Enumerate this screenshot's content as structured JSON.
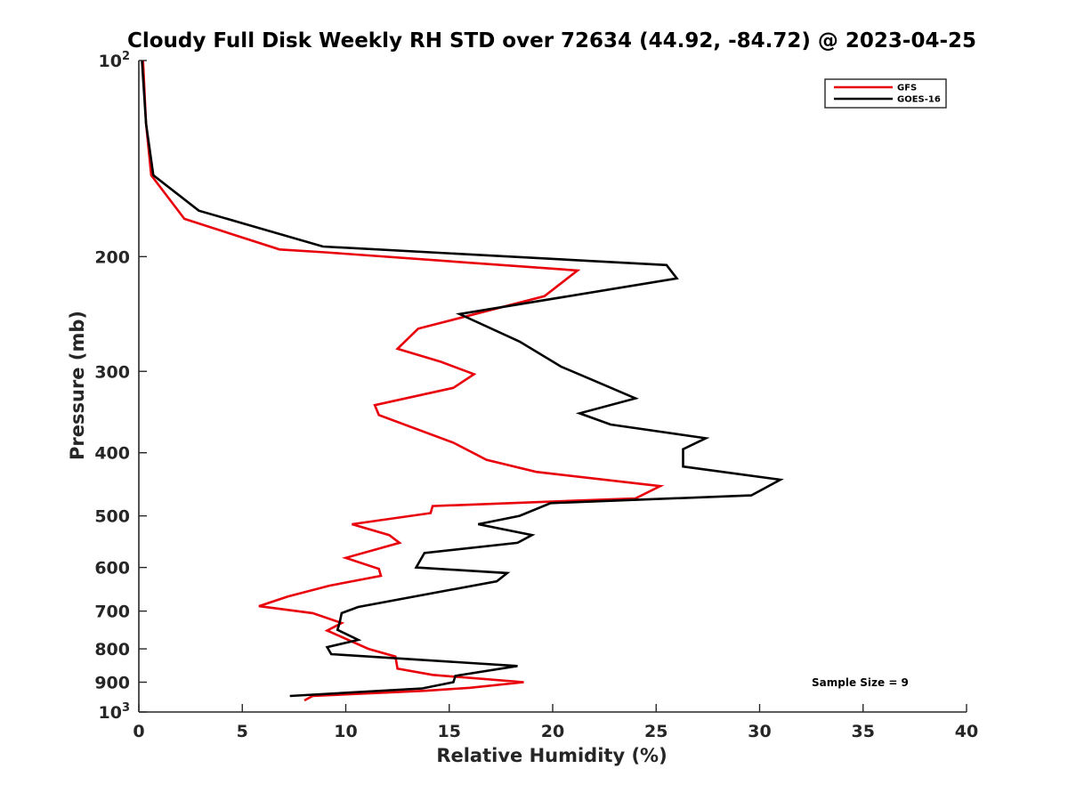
{
  "chart_data": {
    "type": "line",
    "title": "Cloudy Full Disk Weekly RH STD over 72634 (44.92, -84.72) @ 2023-04-25",
    "xlabel": "Relative Humidity (%)",
    "ylabel": "Pressure (mb)",
    "xlim": [
      0,
      40
    ],
    "ylim": [
      100,
      1000
    ],
    "y_scale": "log",
    "y_reversed": true,
    "x_ticks": [
      "0",
      "5",
      "10",
      "15",
      "20",
      "25",
      "30",
      "35",
      "40"
    ],
    "y_ticks": [
      {
        "value": 100,
        "base": "10",
        "exp": "2"
      },
      {
        "value": 200,
        "label": "200"
      },
      {
        "value": 300,
        "label": "300"
      },
      {
        "value": 400,
        "label": "400"
      },
      {
        "value": 500,
        "label": "500"
      },
      {
        "value": 600,
        "label": "600"
      },
      {
        "value": 700,
        "label": "700"
      },
      {
        "value": 800,
        "label": "800"
      },
      {
        "value": 900,
        "label": "900"
      },
      {
        "value": 1000,
        "base": "10",
        "exp": "3"
      }
    ],
    "legend_position": "top-right",
    "grid": false,
    "annotation": "Sample Size = 9",
    "series": [
      {
        "name": "GFS",
        "color": "#e8000b",
        "points": [
          [
            0.2,
            100
          ],
          [
            0.35,
            125
          ],
          [
            0.6,
            150
          ],
          [
            2.2,
            175
          ],
          [
            6.8,
            195
          ],
          [
            9,
            197
          ],
          [
            21.2,
            210
          ],
          [
            19.6,
            230
          ],
          [
            13.5,
            258
          ],
          [
            12.5,
            277
          ],
          [
            14.6,
            290
          ],
          [
            16.2,
            303
          ],
          [
            15.2,
            318
          ],
          [
            11.4,
            338
          ],
          [
            11.6,
            350
          ],
          [
            15.2,
            386
          ],
          [
            16.8,
            410
          ],
          [
            19.2,
            428
          ],
          [
            25.2,
            450
          ],
          [
            24,
            470
          ],
          [
            14.2,
            483
          ],
          [
            14.1,
            495
          ],
          [
            10.3,
            515
          ],
          [
            12.1,
            535
          ],
          [
            12.6,
            550
          ],
          [
            10,
            580
          ],
          [
            11.6,
            603
          ],
          [
            11.7,
            618
          ],
          [
            9.2,
            640
          ],
          [
            7.2,
            665
          ],
          [
            5.8,
            688
          ],
          [
            8.4,
            705
          ],
          [
            9.8,
            730
          ],
          [
            9.1,
            750
          ],
          [
            11.1,
            800
          ],
          [
            12.4,
            822
          ],
          [
            12.5,
            858
          ],
          [
            14.2,
            877
          ],
          [
            18.6,
            900
          ],
          [
            16,
            918
          ],
          [
            13.8,
            928
          ],
          [
            8.4,
            945
          ],
          [
            8,
            960
          ]
        ]
      },
      {
        "name": "GOES-16",
        "color": "#000000",
        "points": [
          [
            0.15,
            100
          ],
          [
            0.35,
            125
          ],
          [
            0.7,
            150
          ],
          [
            2.9,
            170
          ],
          [
            8.9,
            193
          ],
          [
            25.5,
            206
          ],
          [
            26,
            216
          ],
          [
            15.5,
            245
          ],
          [
            18.4,
            270
          ],
          [
            20.4,
            295
          ],
          [
            22,
            310
          ],
          [
            24,
            330
          ],
          [
            21.3,
            348
          ],
          [
            22.8,
            362
          ],
          [
            27.4,
            380
          ],
          [
            26.3,
            395
          ],
          [
            26.3,
            420
          ],
          [
            31,
            440
          ],
          [
            29.6,
            465
          ],
          [
            19.9,
            478
          ],
          [
            18.4,
            500
          ],
          [
            16.4,
            515
          ],
          [
            19,
            535
          ],
          [
            18.3,
            550
          ],
          [
            13.8,
            570
          ],
          [
            13.4,
            600
          ],
          [
            17.8,
            612
          ],
          [
            17.3,
            630
          ],
          [
            10.6,
            690
          ],
          [
            9.8,
            705
          ],
          [
            9.7,
            730
          ],
          [
            9.6,
            748
          ],
          [
            10.6,
            775
          ],
          [
            9.1,
            795
          ],
          [
            9.3,
            815
          ],
          [
            18.3,
            850
          ],
          [
            15.3,
            880
          ],
          [
            15.2,
            900
          ],
          [
            13.7,
            920
          ],
          [
            7.3,
            945
          ]
        ]
      }
    ]
  }
}
